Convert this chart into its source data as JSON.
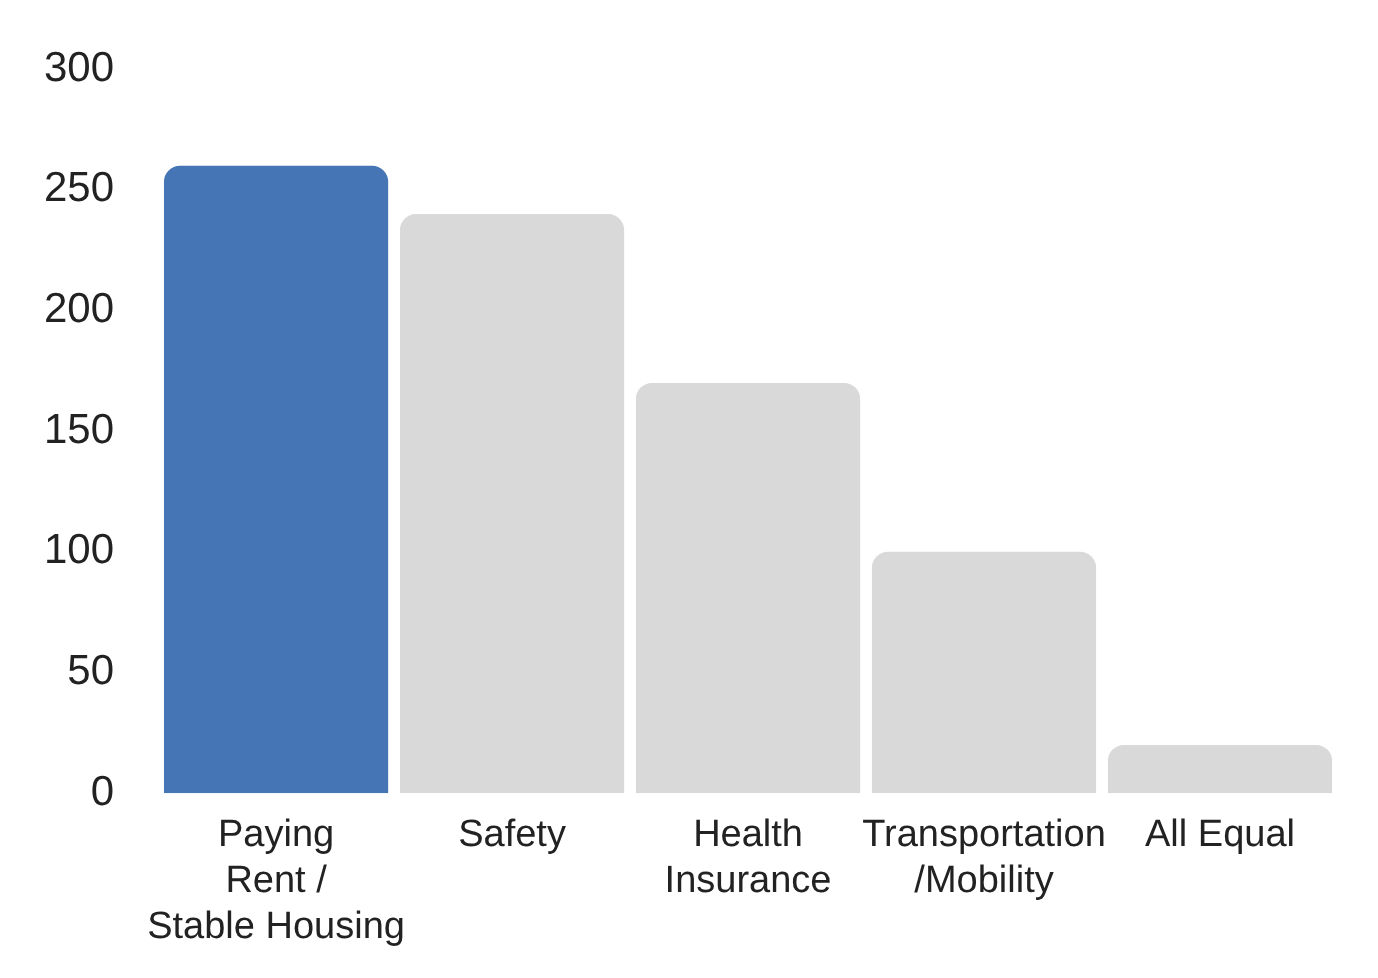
{
  "chart_data": {
    "type": "bar",
    "categories": [
      "Paying\nRent /\nStable Housing",
      "Safety",
      "Health\nInsurance",
      "Transportation\n/Mobility",
      "All Equal"
    ],
    "values": [
      260,
      240,
      170,
      100,
      20
    ],
    "colors": [
      "#4675b5",
      "#d9d9d9",
      "#d9d9d9",
      "#d9d9d9",
      "#d9d9d9"
    ],
    "ylim": [
      0,
      300
    ],
    "yticks": [
      0,
      50,
      100,
      150,
      200,
      250,
      300
    ],
    "grid": false,
    "legend": false
  }
}
